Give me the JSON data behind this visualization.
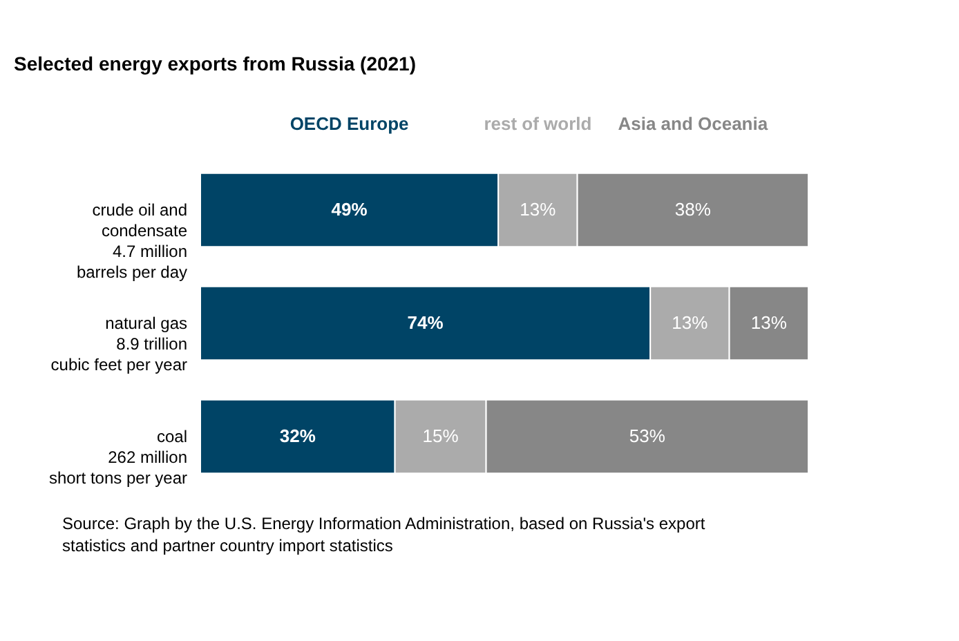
{
  "chart_data": {
    "type": "bar",
    "orientation": "horizontal",
    "stacked": true,
    "title": "Selected energy exports from Russia (2021)",
    "categories": [
      "crude oil and\ncondensate\n4.7 million\nbarrels per day",
      "natural gas\n8.9 trillion\ncubic feet per year",
      "coal\n262 million\nshort tons per year"
    ],
    "series": [
      {
        "name": "OECD Europe",
        "color": "#004466",
        "values": [
          49,
          74,
          32
        ],
        "value_labels": [
          "49%",
          "74%",
          "32%"
        ]
      },
      {
        "name": "rest of world",
        "color": "#ababab",
        "values": [
          13,
          13,
          15
        ],
        "value_labels": [
          "13%",
          "13%",
          "15%"
        ]
      },
      {
        "name": "Asia and Oceania",
        "color": "#878787",
        "values": [
          38,
          13,
          53
        ],
        "value_labels": [
          "38%",
          "13%",
          "53%"
        ]
      }
    ],
    "legend": "top",
    "tick_labels": "y",
    "annotations": [
      "Source: Graph by the U.S. Energy Information Administration, based on Russia's export\nstatistics and partner country import statistics"
    ]
  }
}
